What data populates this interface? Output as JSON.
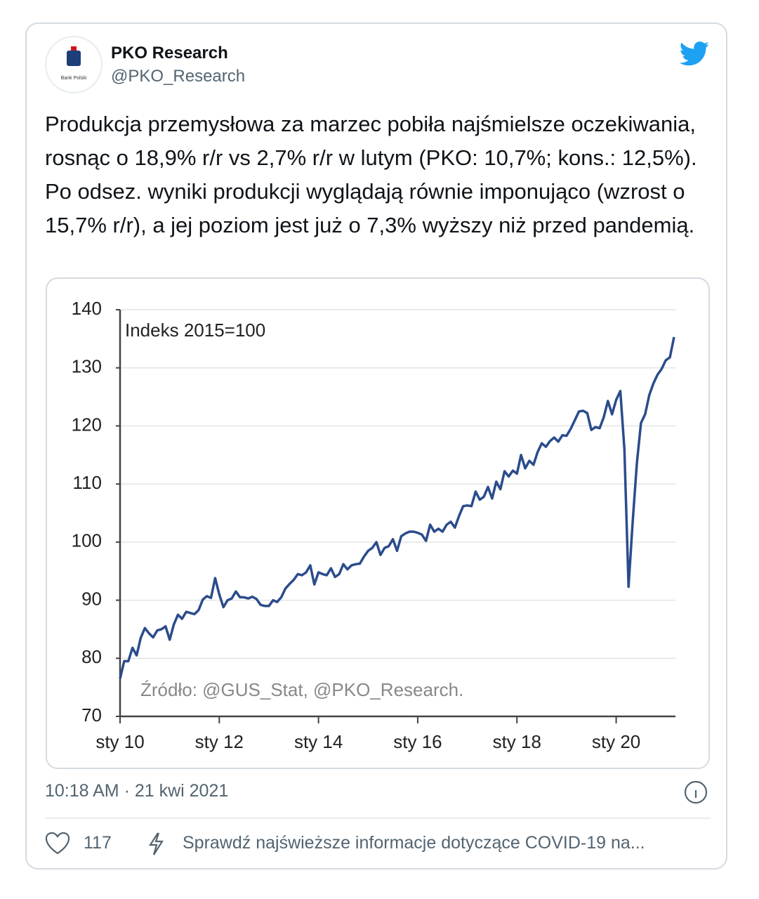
{
  "tweet": {
    "author_name": "PKO Research",
    "handle": "@PKO_Research",
    "logo_text": "Bank Polski",
    "text": "Produkcja przemysłowa za marzec pobiła najśmielsze oczekiwania, rosnąc o 18,9% r/r vs 2,7% r/r w lutym (PKO: 10,7%; kons.: 12,5%). Po odsez. wyniki produkcji wyglądają równie imponująco (wzrost o 15,7% r/r), a jej poziom jest już o 7,3% wyższy niż przed pandemią.",
    "time": "10:18 AM · 21 kwi 2021",
    "likes": 117,
    "covid_link": "Sprawdź najświeższe informacje dotyczące COVID-19 na..."
  },
  "chart_data": {
    "type": "line",
    "annotation": "Indeks 2015=100",
    "source": "Źródło: @GUS_Stat, @PKO_Research.",
    "color": "#2b4c8c",
    "ylim": [
      70,
      140
    ],
    "yticks": [
      70,
      80,
      90,
      100,
      110,
      120,
      130,
      140
    ],
    "grid": true,
    "categories": [
      "sty 10",
      null,
      null,
      null,
      null,
      null,
      null,
      null,
      null,
      null,
      null,
      null,
      null,
      null,
      null,
      null,
      null,
      null,
      null,
      null,
      null,
      null,
      null,
      null,
      "sty 12",
      null,
      null,
      null,
      null,
      null,
      null,
      null,
      null,
      null,
      null,
      null,
      null,
      null,
      null,
      null,
      null,
      null,
      null,
      null,
      null,
      null,
      null,
      null,
      "sty 14",
      null,
      null,
      null,
      null,
      null,
      null,
      null,
      null,
      null,
      null,
      null,
      null,
      null,
      null,
      null,
      null,
      null,
      null,
      null,
      null,
      null,
      null,
      null,
      "sty 16",
      null,
      null,
      null,
      null,
      null,
      null,
      null,
      null,
      null,
      null,
      null,
      null,
      null,
      null,
      null,
      null,
      null,
      null,
      null,
      null,
      null,
      null,
      null,
      "sty 18",
      null,
      null,
      null,
      null,
      null,
      null,
      null,
      null,
      null,
      null,
      null,
      null,
      null,
      null,
      null,
      null,
      null,
      null,
      null,
      null,
      null,
      null,
      null,
      "sty 20",
      null,
      null,
      null,
      null,
      null,
      null,
      null,
      null,
      null,
      null,
      null,
      null,
      null,
      null
    ],
    "values": [
      76.5,
      79.5,
      79.5,
      81.8,
      80.5,
      83.5,
      85.2,
      84.3,
      83.6,
      84.8,
      85.0,
      85.5,
      83.2,
      85.8,
      87.5,
      86.8,
      88.0,
      87.8,
      87.6,
      88.3,
      90.1,
      90.7,
      90.4,
      93.8,
      91.0,
      88.8,
      90.0,
      90.3,
      91.5,
      90.5,
      90.5,
      90.3,
      90.6,
      90.2,
      89.2,
      89.0,
      89.0,
      90.0,
      89.7,
      90.5,
      92.0,
      92.8,
      93.5,
      94.5,
      94.3,
      94.8,
      96.0,
      92.7,
      94.8,
      94.5,
      94.3,
      95.5,
      94.0,
      94.5,
      96.2,
      95.3,
      96.0,
      96.2,
      96.3,
      97.5,
      98.5,
      99.0,
      100.0,
      97.8,
      99.0,
      99.3,
      100.5,
      98.5,
      101.0,
      101.5,
      101.8,
      101.8,
      101.6,
      101.3,
      100.2,
      103.0,
      101.8,
      102.3,
      101.8,
      103.0,
      103.5,
      102.5,
      104.5,
      106.2,
      106.3,
      106.2,
      108.7,
      107.3,
      107.8,
      109.5,
      107.5,
      110.4,
      109.1,
      112.2,
      111.3,
      112.3,
      111.8,
      115.0,
      112.7,
      114.0,
      113.3,
      115.5,
      117.0,
      116.4,
      117.4,
      118.0,
      117.3,
      118.4,
      118.3,
      119.5,
      121.0,
      122.5,
      122.6,
      122.2,
      119.3,
      119.8,
      119.6,
      121.5,
      124.3,
      122.0,
      124.5,
      126.0,
      116.0,
      92.3,
      103.5,
      113.5,
      120.5,
      122.0,
      125.3,
      127.3,
      128.8,
      129.8,
      131.3,
      131.8,
      135.3
    ]
  }
}
